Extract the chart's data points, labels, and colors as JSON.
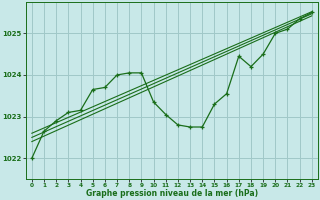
{
  "title": "Graphe pression niveau de la mer (hPa)",
  "background_color": "#c8e8e8",
  "grid_color": "#a0c8c8",
  "line_color": "#1a6e1a",
  "xlim": [
    -0.5,
    23.5
  ],
  "ylim": [
    1021.5,
    1025.75
  ],
  "yticks": [
    1022,
    1023,
    1024,
    1025
  ],
  "xticks": [
    0,
    1,
    2,
    3,
    4,
    5,
    6,
    7,
    8,
    9,
    10,
    11,
    12,
    13,
    14,
    15,
    16,
    17,
    18,
    19,
    20,
    21,
    22,
    23
  ],
  "series1_x": [
    0,
    1,
    2,
    3,
    4,
    5,
    6,
    7,
    8,
    9,
    10,
    11,
    12,
    13,
    14,
    15,
    16,
    17,
    18,
    19,
    20,
    21,
    22,
    23
  ],
  "series1_y": [
    1022.0,
    1022.65,
    1022.9,
    1023.1,
    1023.15,
    1023.65,
    1023.7,
    1024.0,
    1024.05,
    1024.05,
    1023.35,
    1023.05,
    1022.8,
    1022.75,
    1022.75,
    1023.3,
    1023.55,
    1024.45,
    1024.2,
    1024.5,
    1025.0,
    1025.1,
    1025.35,
    1025.5
  ],
  "series2_x": [
    0,
    23
  ],
  "series2_y": [
    1022.6,
    1025.52
  ],
  "series3_x": [
    0,
    23
  ],
  "series3_y": [
    1022.5,
    1025.47
  ],
  "series4_x": [
    0,
    23
  ],
  "series4_y": [
    1022.4,
    1025.42
  ]
}
